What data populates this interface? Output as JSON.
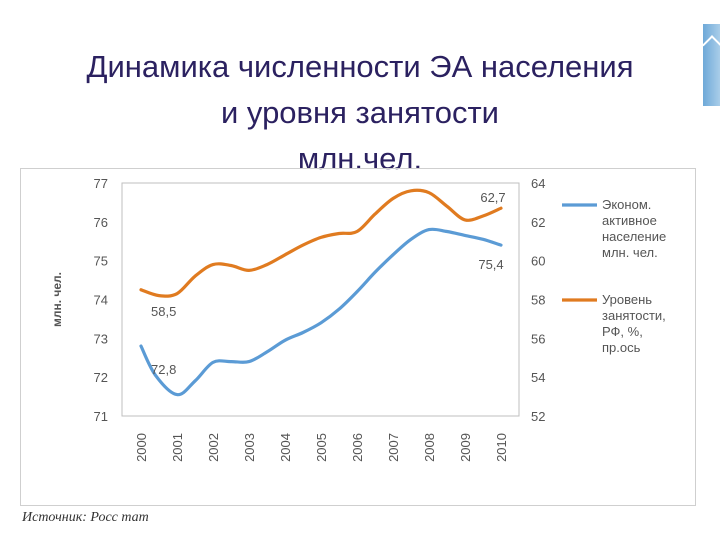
{
  "title": {
    "line1": "Динамика численности ЭА населения",
    "line2": "и уровня занятости",
    "line3": "млн.чел."
  },
  "source": "Источник: Росс тат",
  "chart_data": {
    "type": "line",
    "categories": [
      "2000",
      "2001",
      "2002",
      "2003",
      "2004",
      "2005",
      "2006",
      "2007",
      "2008",
      "2009",
      "2010"
    ],
    "ylabel": "млн. чел.",
    "ylim": [
      71,
      77
    ],
    "y_ticks": [
      "71",
      "72",
      "73",
      "74",
      "75",
      "76",
      "77"
    ],
    "y2lim": [
      52,
      64
    ],
    "y2_ticks": [
      "52",
      "54",
      "56",
      "58",
      "60",
      "62",
      "64"
    ],
    "grid": false,
    "legend_position": "right",
    "series": [
      {
        "name": "Эконом. активное население млн. чел.",
        "legend_lines": [
          "Эконом.",
          "активное",
          "население",
          "млн. чел."
        ],
        "axis": "left",
        "color": "#5b9bd5",
        "x": [
          2000,
          2000.4,
          2001,
          2001.5,
          2002,
          2002.5,
          2003,
          2003.5,
          2004,
          2004.5,
          2005,
          2005.5,
          2006,
          2006.5,
          2007,
          2007.5,
          2008,
          2008.5,
          2009,
          2009.5,
          2010
        ],
        "values": [
          72.8,
          72.05,
          71.55,
          71.9,
          72.38,
          72.4,
          72.4,
          72.65,
          72.95,
          73.15,
          73.4,
          73.75,
          74.2,
          74.7,
          75.15,
          75.55,
          75.8,
          75.75,
          75.65,
          75.55,
          75.4
        ]
      },
      {
        "name": "Уровень занятости, РФ, %, пр.ось",
        "legend_lines": [
          "Уровень",
          "занятости,",
          "РФ, %,",
          "пр.ось"
        ],
        "axis": "right",
        "color": "#e07b20",
        "x": [
          2000,
          2000.5,
          2001,
          2001.5,
          2002,
          2002.5,
          2003,
          2003.5,
          2004,
          2004.5,
          2005,
          2005.5,
          2006,
          2006.5,
          2007,
          2007.5,
          2008,
          2008.5,
          2009,
          2009.5,
          2010
        ],
        "values": [
          58.5,
          58.2,
          58.3,
          59.2,
          59.8,
          59.75,
          59.5,
          59.8,
          60.3,
          60.8,
          61.2,
          61.4,
          61.5,
          62.4,
          63.2,
          63.6,
          63.5,
          62.8,
          62.1,
          62.3,
          62.7
        ]
      }
    ],
    "annotations": [
      {
        "text": "58,5",
        "x": 2000,
        "value": 58.5,
        "axis": "right"
      },
      {
        "text": "72,8",
        "x": 2000,
        "value": 72.8,
        "axis": "left"
      },
      {
        "text": "62,7",
        "x": 2010,
        "value": 62.7,
        "axis": "right"
      },
      {
        "text": "75,4",
        "x": 2010,
        "value": 75.4,
        "axis": "left"
      }
    ]
  }
}
